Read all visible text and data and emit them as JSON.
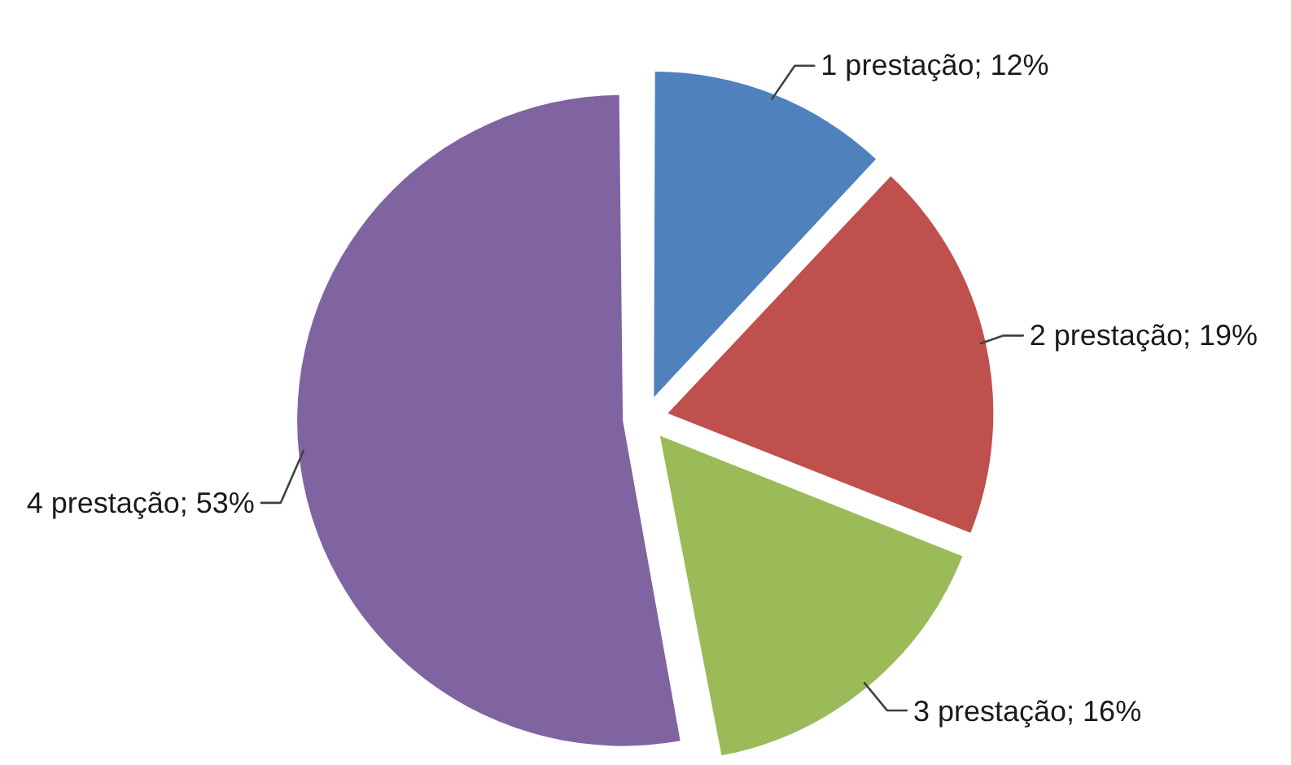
{
  "chart_data": {
    "type": "pie",
    "categories": [
      "1 prestação",
      "2 prestação",
      "3 prestação",
      "4 prestação"
    ],
    "values": [
      12,
      19,
      16,
      53
    ],
    "colors": [
      "#4f81bd",
      "#c0504d",
      "#9bbb59",
      "#8064a2"
    ],
    "value_labels": [
      "12%",
      "19%",
      "16%",
      "53%"
    ]
  }
}
